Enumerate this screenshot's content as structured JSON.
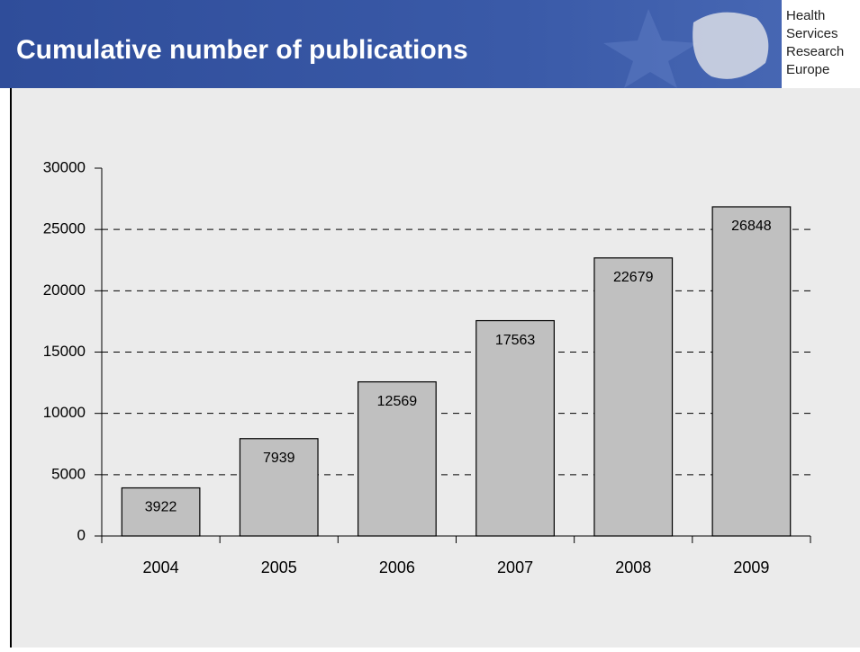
{
  "header": {
    "title": "Cumulative number of publications",
    "logo": [
      "Health",
      "Services",
      "Research",
      "Europe"
    ]
  },
  "chart_data": {
    "type": "bar",
    "categories": [
      "2004",
      "2005",
      "2006",
      "2007",
      "2008",
      "2009"
    ],
    "values": [
      3922,
      7939,
      12569,
      17563,
      22679,
      26848
    ],
    "color": "#c0c0c0",
    "ylim": [
      0,
      30000
    ],
    "yticks": [
      0,
      5000,
      10000,
      15000,
      20000,
      25000,
      30000
    ],
    "grid": true
  }
}
